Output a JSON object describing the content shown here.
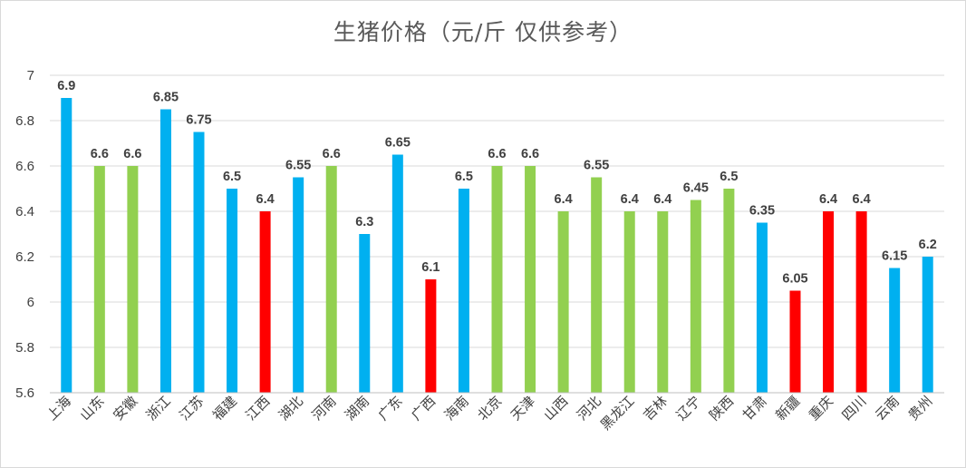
{
  "chart_data": {
    "type": "bar",
    "title": "生猪价格（元/斤 仅供参考）",
    "xlabel": "",
    "ylabel": "",
    "ylim": [
      5.6,
      7
    ],
    "yticks": [
      "5.6",
      "5.8",
      "6",
      "6.2",
      "6.4",
      "6.6",
      "6.8",
      "7"
    ],
    "grid": true,
    "categories": [
      "上海",
      "山东",
      "安徽",
      "浙江",
      "江苏",
      "福建",
      "江西",
      "湖北",
      "河南",
      "湖南",
      "广东",
      "广西",
      "海南",
      "北京",
      "天津",
      "山西",
      "河北",
      "黑龙江",
      "吉林",
      "辽宁",
      "陕西",
      "甘肃",
      "新疆",
      "重庆",
      "四川",
      "云南",
      "贵州"
    ],
    "values": [
      6.9,
      6.6,
      6.6,
      6.85,
      6.75,
      6.5,
      6.4,
      6.55,
      6.6,
      6.3,
      6.65,
      6.1,
      6.5,
      6.6,
      6.6,
      6.4,
      6.55,
      6.4,
      6.4,
      6.45,
      6.5,
      6.35,
      6.05,
      6.4,
      6.4,
      6.15,
      6.2
    ],
    "value_labels": [
      "6.9",
      "6.6",
      "6.6",
      "6.85",
      "6.75",
      "6.5",
      "6.4",
      "6.55",
      "6.6",
      "6.3",
      "6.65",
      "6.1",
      "6.5",
      "6.6",
      "6.6",
      "6.4",
      "6.55",
      "6.4",
      "6.4",
      "6.45",
      "6.5",
      "6.35",
      "6.05",
      "6.4",
      "6.4",
      "6.15",
      "6.2"
    ],
    "bar_colors": [
      "#00b0f0",
      "#92d050",
      "#92d050",
      "#00b0f0",
      "#00b0f0",
      "#00b0f0",
      "#ff0000",
      "#00b0f0",
      "#92d050",
      "#00b0f0",
      "#00b0f0",
      "#ff0000",
      "#00b0f0",
      "#92d050",
      "#92d050",
      "#92d050",
      "#92d050",
      "#92d050",
      "#92d050",
      "#92d050",
      "#92d050",
      "#00b0f0",
      "#ff0000",
      "#ff0000",
      "#ff0000",
      "#00b0f0",
      "#00b0f0"
    ]
  }
}
